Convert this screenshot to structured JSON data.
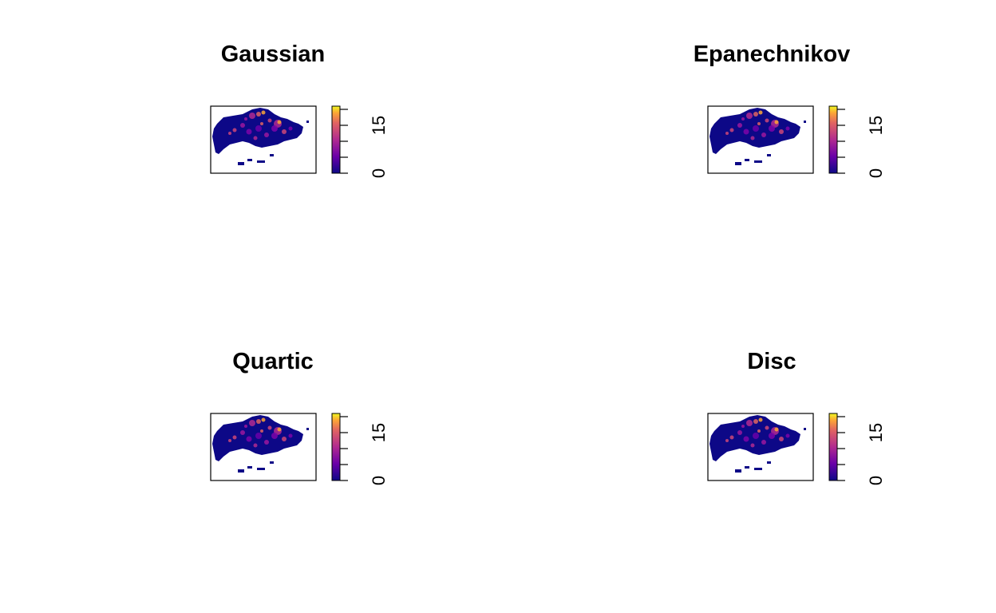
{
  "chart_data": [
    {
      "type": "heatmap",
      "title": "Gaussian",
      "colorbar": {
        "range": [
          0,
          21
        ],
        "tick_labels": [
          "0",
          "15"
        ],
        "ticks": [
          0,
          5,
          10,
          15,
          20
        ],
        "palette": "plasma"
      }
    },
    {
      "type": "heatmap",
      "title": "Epanechnikov",
      "colorbar": {
        "range": [
          0,
          21
        ],
        "tick_labels": [
          "0",
          "15"
        ],
        "ticks": [
          0,
          5,
          10,
          15,
          20
        ],
        "palette": "plasma"
      }
    },
    {
      "type": "heatmap",
      "title": "Quartic",
      "colorbar": {
        "range": [
          0,
          21
        ],
        "tick_labels": [
          "0",
          "15"
        ],
        "ticks": [
          0,
          5,
          10,
          15,
          20
        ],
        "palette": "plasma"
      }
    },
    {
      "type": "heatmap",
      "title": "Disc",
      "colorbar": {
        "range": [
          0,
          21
        ],
        "tick_labels": [
          "0",
          "15"
        ],
        "ticks": [
          0,
          5,
          10,
          15,
          20
        ],
        "palette": "plasma"
      }
    }
  ],
  "colors": {
    "background": "#ffffff",
    "palette_low": "#0d0887",
    "palette_mid": "#cc4778",
    "palette_high": "#f0f921"
  }
}
